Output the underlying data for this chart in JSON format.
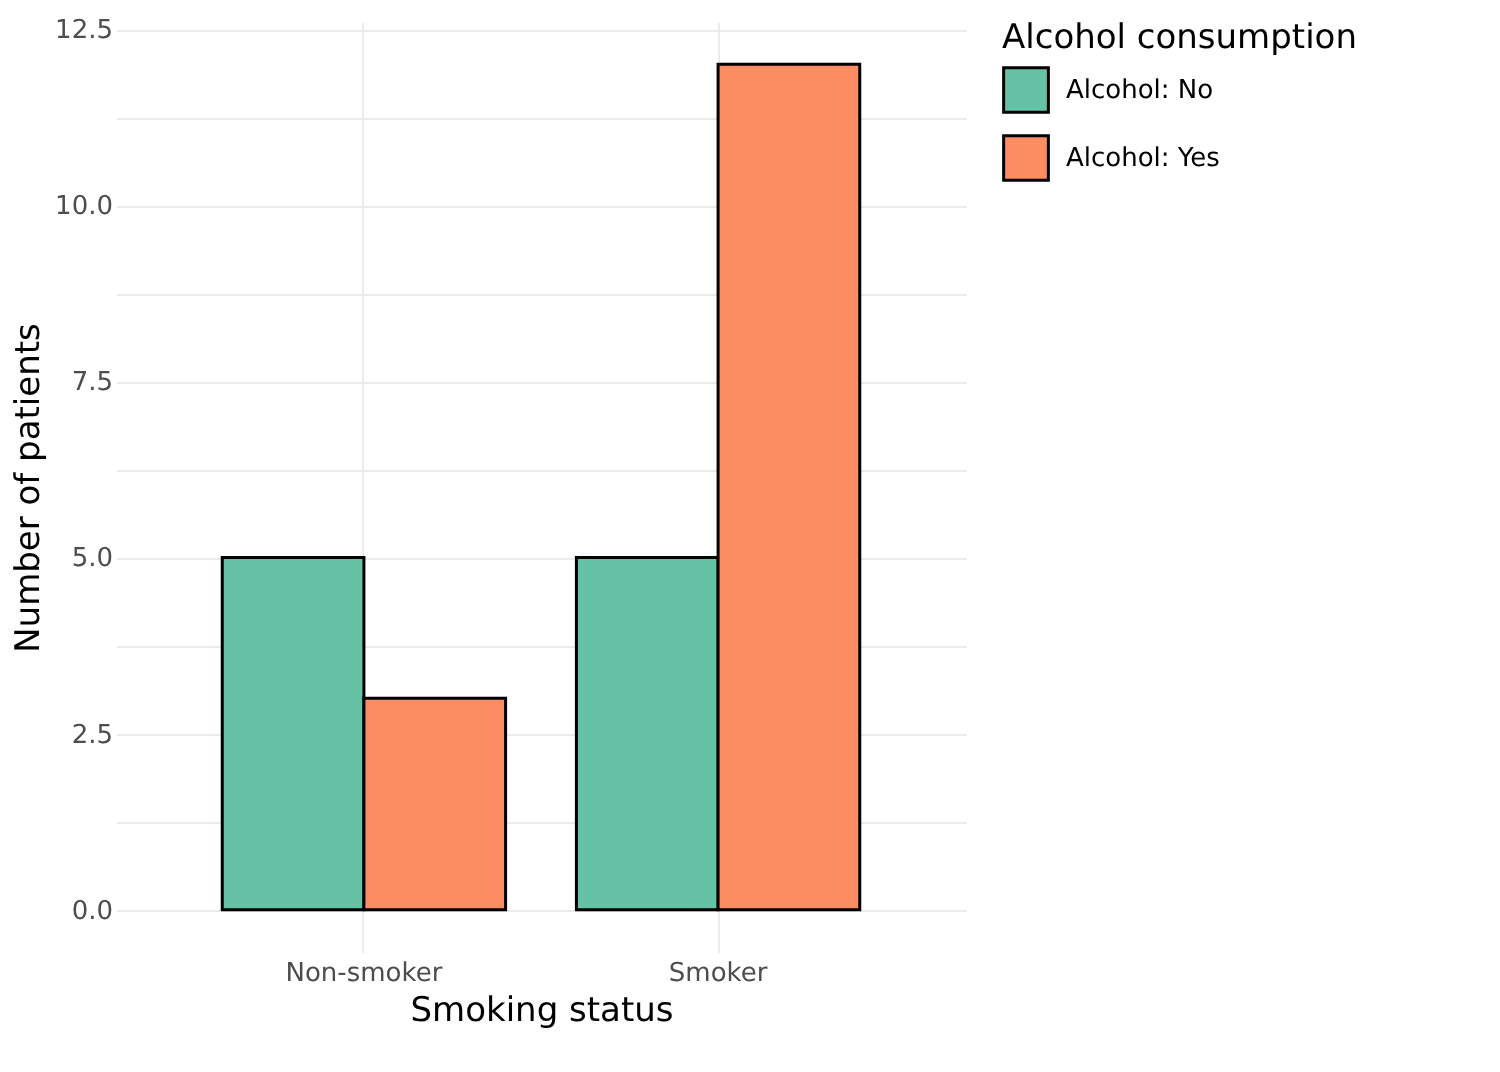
{
  "chart_data": {
    "type": "bar",
    "xlabel": "Smoking status",
    "ylabel": "Number of patients",
    "legend_title": "Alcohol consumption",
    "categories": [
      "Non-smoker",
      "Smoker"
    ],
    "series": [
      {
        "name": "Alcohol: No",
        "color": "#66c2a5",
        "values": [
          5,
          5
        ]
      },
      {
        "name": "Alcohol: Yes",
        "color": "#fc8d62",
        "values": [
          3,
          12
        ]
      }
    ],
    "ylim": [
      -0.6,
      12.6
    ],
    "yticks": [
      {
        "value": 0,
        "label": "0.0"
      },
      {
        "value": 1.25,
        "label": null
      },
      2.5,
      {
        "value": 3.75,
        "label": null
      },
      {
        "value": 5,
        "label": "5.0"
      },
      {
        "value": 6.25,
        "label": null
      },
      7.5,
      {
        "value": 8.75,
        "label": null
      },
      {
        "value": 10,
        "label": "10.0"
      },
      {
        "value": 11.25,
        "label": null
      },
      12.5
    ],
    "grid": true,
    "legend": "right"
  }
}
